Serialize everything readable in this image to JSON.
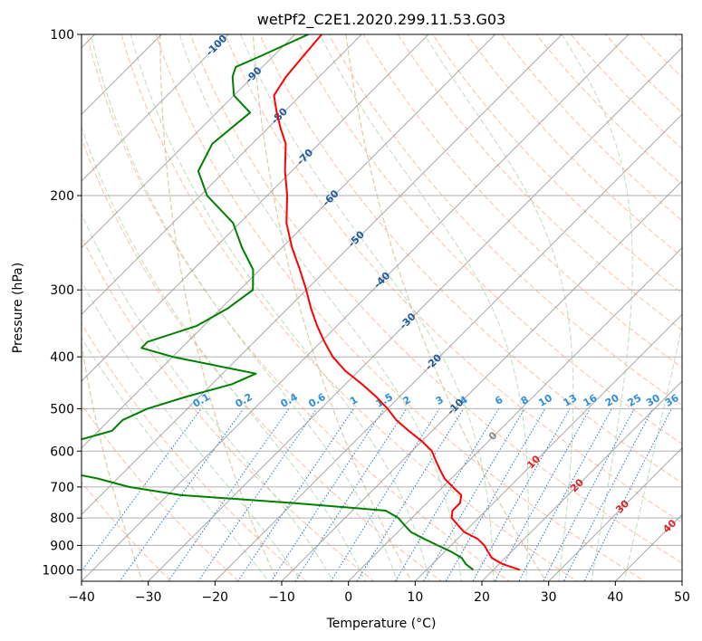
{
  "chart_data": {
    "type": "skew-t",
    "title": "wetPf2_C2E1.2020.299.11.53.G03",
    "xlabel": "Temperature (°C)",
    "ylabel": "Pressure (hPa)",
    "xlim": [
      -40,
      50
    ],
    "ylim": [
      1050,
      100
    ],
    "x_scale": "linear",
    "y_scale": "log",
    "skew_deg": 45,
    "x_ticks": [
      -40,
      -30,
      -20,
      -10,
      0,
      10,
      20,
      30,
      40,
      50
    ],
    "y_ticks": [
      1000,
      900,
      800,
      700,
      600,
      500,
      400,
      300,
      200,
      100
    ],
    "grid": true,
    "colors": {
      "temperature": "#ff0000",
      "dewpoint": "#008000",
      "isotherm": "#999999",
      "dry_adiabat": "#ffb899",
      "moist_adiabat": "#b3dcb3",
      "mixing_ratio": "#1f77d4",
      "theta_e": "#d9bb93",
      "label_cold": "#1f5aa0",
      "label_mix": "#2c8fe0",
      "label_warm": "#d62728",
      "label_zero": "#888888"
    },
    "isotherm_labels": [
      {
        "text": "-100",
        "temp": -100
      },
      {
        "text": "-90",
        "temp": -90
      },
      {
        "text": "-80",
        "temp": -80
      },
      {
        "text": "-70",
        "temp": -70
      },
      {
        "text": "-60",
        "temp": -60
      },
      {
        "text": "-50",
        "temp": -50
      },
      {
        "text": "-40",
        "temp": -40
      },
      {
        "text": "-30",
        "temp": -30
      },
      {
        "text": "-20",
        "temp": -20
      },
      {
        "text": "-10",
        "temp": -10
      },
      {
        "text": "0",
        "temp": 0
      },
      {
        "text": "10",
        "temp": 10
      },
      {
        "text": "20",
        "temp": 20
      },
      {
        "text": "30",
        "temp": 30
      },
      {
        "text": "40",
        "temp": 40
      }
    ],
    "mixing_ratio_labels": [
      "0.1",
      "0.2",
      "0.4",
      "0.6",
      "1",
      "1.5",
      "2",
      "3",
      "4",
      "6",
      "8",
      "10",
      "13",
      "16",
      "20",
      "25",
      "30",
      "36"
    ],
    "series": [
      {
        "id": "temperature",
        "pressure": [
          1000,
          975,
          950,
          925,
          900,
          875,
          850,
          825,
          800,
          775,
          750,
          725,
          700,
          675,
          650,
          625,
          600,
          575,
          550,
          525,
          500,
          475,
          450,
          425,
          400,
          375,
          350,
          325,
          300,
          275,
          250,
          225,
          200,
          180,
          160,
          150,
          140,
          130,
          120,
          110,
          100
        ],
        "values": [
          24.0,
          20.5,
          18.0,
          16.5,
          15.0,
          13.0,
          10.0,
          8.0,
          6.0,
          5.0,
          5.0,
          4.0,
          1.5,
          -1.0,
          -3.0,
          -5.0,
          -7.0,
          -10.0,
          -13.5,
          -17.0,
          -20.0,
          -23.5,
          -27.5,
          -32.0,
          -36.0,
          -39.5,
          -43.0,
          -46.5,
          -50.0,
          -54.0,
          -58.5,
          -63.0,
          -67.0,
          -71.0,
          -75.0,
          -78.0,
          -81.0,
          -84.0,
          -85.0,
          -85.5,
          -86.0
        ]
      },
      {
        "id": "dewpoint",
        "pressure": [
          1000,
          975,
          950,
          925,
          900,
          875,
          850,
          825,
          800,
          775,
          750,
          725,
          700,
          675,
          650,
          625,
          610,
          600,
          575,
          550,
          525,
          500,
          475,
          450,
          430,
          400,
          385,
          375,
          350,
          325,
          300,
          275,
          250,
          225,
          200,
          180,
          160,
          140,
          130,
          120,
          115,
          110,
          100
        ],
        "values": [
          17.0,
          15.0,
          13.5,
          11.0,
          8.0,
          5.0,
          2.0,
          0.0,
          -2.0,
          -5.0,
          -20.0,
          -38.0,
          -47.0,
          -53.0,
          -61.0,
          -71.0,
          -74.5,
          -72.0,
          -62.0,
          -58.0,
          -58.0,
          -56.0,
          -52.0,
          -47.0,
          -45.0,
          -60.0,
          -66.0,
          -66.0,
          -61.0,
          -59.0,
          -58.0,
          -61.0,
          -66.0,
          -71.0,
          -79.0,
          -84.0,
          -86.0,
          -85.0,
          -90.0,
          -93.0,
          -94.0,
          -92.0,
          -88.0
        ]
      }
    ]
  }
}
